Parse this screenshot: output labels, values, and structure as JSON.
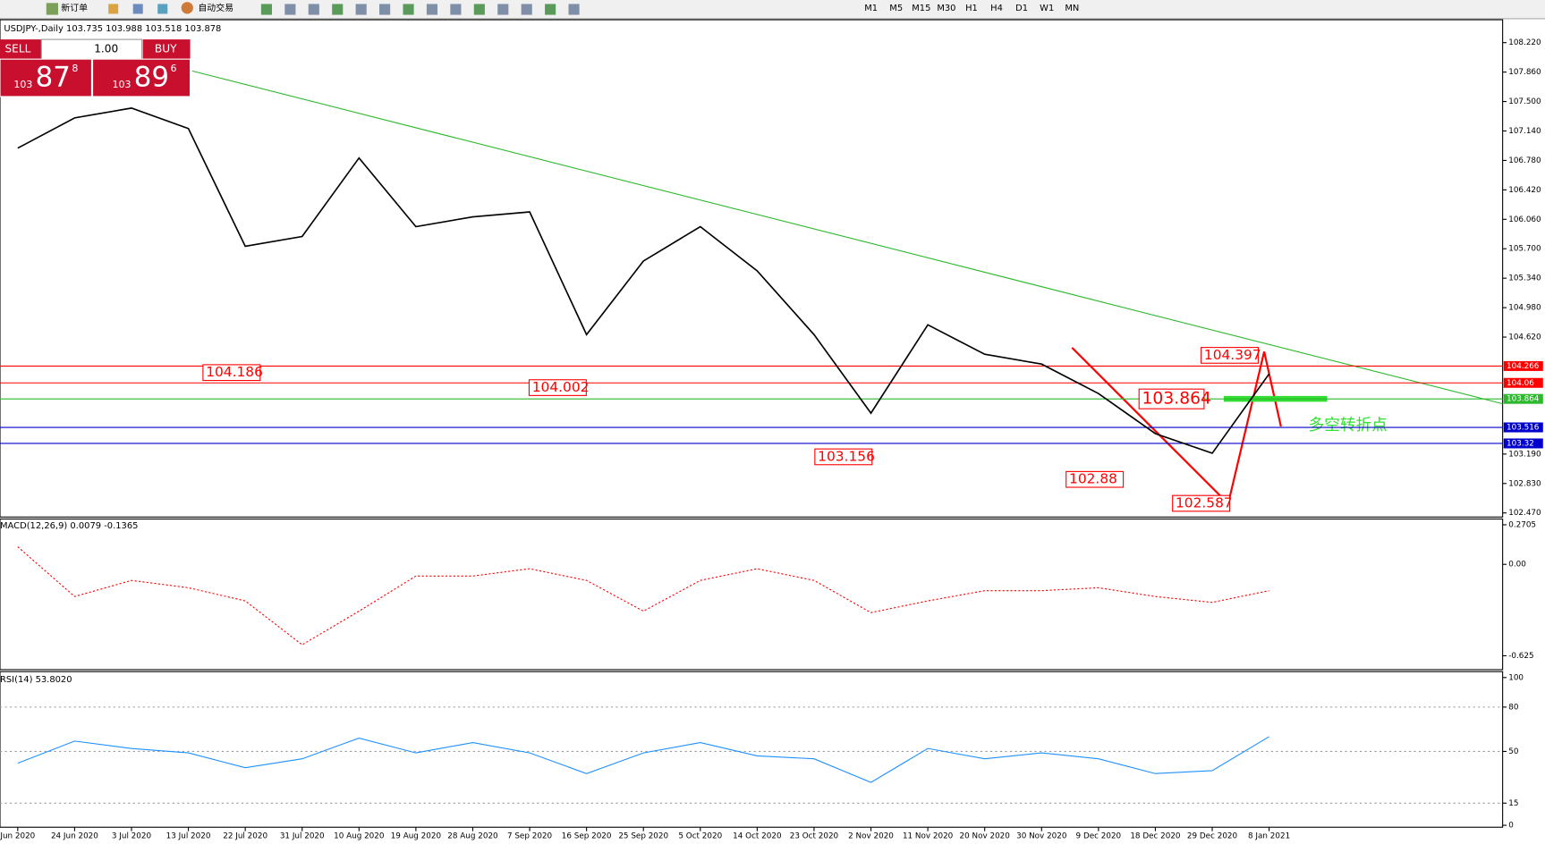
{
  "toolbar": {
    "new_order": "新订单",
    "auto_trading": "自动交易",
    "timeframes": [
      "M1",
      "M5",
      "M15",
      "M30",
      "H1",
      "H4",
      "D1",
      "W1",
      "MN"
    ]
  },
  "trade_panel": {
    "sell": "SELL",
    "lots": "1.00",
    "buy": "BUY",
    "sell_big": "103",
    "sell_pips": "87",
    "sell_frac": "8",
    "buy_big": "103",
    "buy_pips": "89",
    "buy_frac": "6"
  },
  "chart_data": [
    {
      "type": "line",
      "title": "USDJPY-,Daily  103.735 103.988 103.518 103.878",
      "color": "#000000",
      "categories": [
        "Jun 2020",
        "24 Jun 2020",
        "3 Jul 2020",
        "13 Jul 2020",
        "22 Jul 2020",
        "31 Jul 2020",
        "10 Aug 2020",
        "19 Aug 2020",
        "28 Aug 2020",
        "7 Sep 2020",
        "16 Sep 2020",
        "25 Sep 2020",
        "5 Oct 2020",
        "14 Oct 2020",
        "23 Oct 2020",
        "2 Nov 2020",
        "11 Nov 2020",
        "20 Nov 2020",
        "30 Nov 2020",
        "9 Dec 2020",
        "18 Dec 2020",
        "29 Dec 2020",
        "8 Jan 2021"
      ],
      "values": [
        106.93,
        107.3,
        107.42,
        107.17,
        105.73,
        105.85,
        106.81,
        105.97,
        106.09,
        106.15,
        104.65,
        105.55,
        105.97,
        105.43,
        104.65,
        103.69,
        104.77,
        104.41,
        104.29,
        103.93,
        103.44,
        103.2,
        104.17
      ],
      "ylim": [
        102.42,
        108.5
      ],
      "yticks": [
        {
          "value": 108.22,
          "label": "108.220"
        },
        {
          "value": 107.86,
          "label": "107.860"
        },
        {
          "value": 107.5,
          "label": "107.500"
        },
        {
          "value": 107.14,
          "label": "107.140"
        },
        {
          "value": 106.78,
          "label": "106.780"
        },
        {
          "value": 106.42,
          "label": "106.420"
        },
        {
          "value": 106.06,
          "label": "106.060"
        },
        {
          "value": 105.7,
          "label": "105.700"
        },
        {
          "value": 105.34,
          "label": "105.340"
        },
        {
          "value": 104.98,
          "label": "104.980"
        },
        {
          "value": 104.62,
          "label": "104.620"
        },
        {
          "value": 103.19,
          "label": "103.190"
        },
        {
          "value": 102.83,
          "label": "102.830"
        },
        {
          "value": 102.47,
          "label": "102.470"
        }
      ],
      "levels": [
        {
          "value": 104.266,
          "color": "#ff0000"
        },
        {
          "value": 104.06,
          "color": "#ff0000"
        },
        {
          "value": 103.864,
          "color": "#2db82d"
        },
        {
          "value": 103.516,
          "color": "#0000cc"
        },
        {
          "value": 103.32,
          "color": "#0000cc"
        }
      ],
      "annotations": [
        104.186,
        104.002,
        103.156,
        102.88,
        102.587,
        103.864,
        104.397
      ],
      "note": "多空转折点"
    },
    {
      "type": "line",
      "title": "MACD(12,26,9) 0.0079 -0.1365",
      "color": "#ff0000",
      "values": [
        0.12,
        -0.22,
        -0.11,
        -0.16,
        -0.25,
        -0.55,
        -0.32,
        -0.08,
        -0.08,
        -0.03,
        -0.11,
        -0.32,
        -0.11,
        -0.03,
        -0.11,
        -0.33,
        -0.25,
        -0.18,
        -0.18,
        -0.16,
        -0.22,
        -0.26,
        -0.18
      ],
      "ylim": [
        -0.72,
        0.31
      ],
      "yticks": [
        0.2705,
        {
          "value": 0,
          "label": "0.00"
        },
        -0.625
      ]
    },
    {
      "type": "line",
      "title": "RSI(14) 53.8020",
      "color": "#1e90ff",
      "values": [
        42,
        57,
        52,
        49,
        39,
        45,
        59,
        49,
        56,
        49,
        35,
        49,
        56,
        47,
        45,
        29,
        52,
        45,
        49,
        45,
        35,
        37,
        60
      ],
      "ylim": [
        -1.3,
        104
      ],
      "yticks": [
        100,
        80,
        50,
        15,
        0
      ]
    }
  ]
}
